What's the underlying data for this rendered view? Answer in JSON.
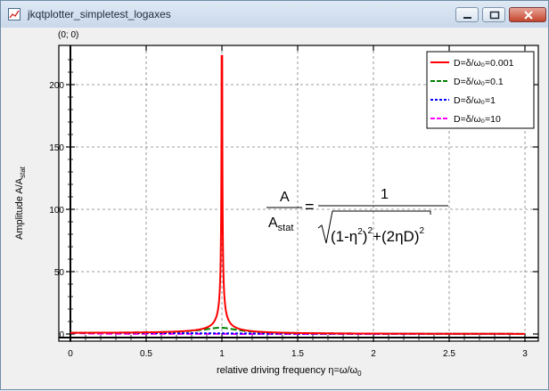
{
  "window": {
    "title": "jkqtplotter_simpletest_logaxes",
    "icon": "app-icon",
    "buttons": [
      "minimize-icon",
      "maximize-icon",
      "close-icon"
    ]
  },
  "coordinate_readout": "(0; 0)",
  "chart_data": {
    "type": "line",
    "xlabel": "relative driving frequency η=ω/ω",
    "xlabel_sub": "0",
    "ylabel": "Amplitude A/A",
    "ylabel_sub": "stat",
    "xlim": [
      -0.08,
      3.05
    ],
    "ylim": [
      -5,
      230
    ],
    "xticks": [
      0,
      0.5,
      1,
      1.5,
      2,
      2.5,
      3
    ],
    "xtick_labels": [
      "0",
      "0.5",
      "1",
      "1.5",
      "2",
      "2.5",
      "3"
    ],
    "yticks": [
      0,
      50,
      100,
      150,
      200
    ],
    "ytick_labels": [
      "0",
      "50",
      "100",
      "150",
      "200"
    ],
    "grid": true,
    "legend_position": "top-right",
    "series": [
      {
        "name": "D=δ/ω₀=0.001",
        "D": 0.001,
        "color": "#ff0000",
        "dash": "solid",
        "peak_value": 223
      },
      {
        "name": "D=δ/ω₀=0.1",
        "D": 0.1,
        "color": "#008000",
        "dash": "dashed",
        "peak_value": 5.0
      },
      {
        "name": "D=δ/ω₀=1",
        "D": 1,
        "color": "#0000ff",
        "dash": "dotted",
        "peak_value": 1.0
      },
      {
        "name": "D=δ/ω₀=10",
        "D": 10,
        "color": "#ff00ff",
        "dash": "dashed",
        "peak_value": 1.0
      }
    ],
    "annotation": {
      "lhs_num": "A",
      "lhs_den": "A",
      "lhs_den_sub": "stat",
      "equals": "=",
      "rhs_num": "1",
      "rhs_den_a": "(1-η",
      "rhs_den_a_sup": "2",
      "rhs_den_a_close": ")",
      "rhs_den_a_exp": "2",
      "rhs_den_plus": "+",
      "rhs_den_b": "(2ηD)",
      "rhs_den_b_exp": "2"
    }
  }
}
